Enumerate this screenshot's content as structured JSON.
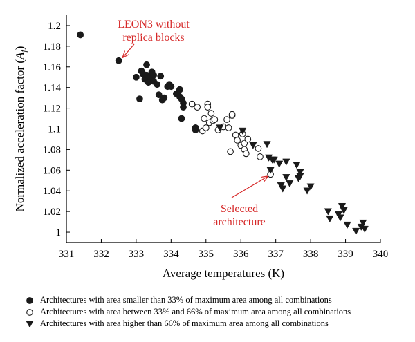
{
  "chart_data": {
    "type": "scatter",
    "title": "",
    "xlabel": "Average temperatures (K)",
    "ylabel_main": "Normalized acceleration factor (",
    "ylabel_symbol": "A",
    "ylabel_sub": "f",
    "ylabel_close": ")",
    "xlim": [
      331,
      340
    ],
    "ylim": [
      0.99,
      1.21
    ],
    "xticks": [
      "331",
      "332",
      "333",
      "334",
      "335",
      "336",
      "337",
      "338",
      "339",
      "340"
    ],
    "yticks": [
      "1",
      "1.02",
      "1.04",
      "1.06",
      "1.08",
      "1.1",
      "1.12",
      "1.14",
      "1.16",
      "1.18",
      "1.2"
    ],
    "grid": false,
    "legend_position": "bottom",
    "colors": {
      "axis": "#000000",
      "annotation": "#d62828",
      "marker": "#1a1a1a"
    },
    "series": [
      {
        "name": "Architectures with area smaller than 33% of maximum area among all combinations",
        "marker": "filled-circle",
        "points": [
          [
            331.4,
            1.191
          ],
          [
            332.5,
            1.166
          ],
          [
            333.0,
            1.15
          ],
          [
            333.1,
            1.129
          ],
          [
            333.15,
            1.156
          ],
          [
            333.2,
            1.153
          ],
          [
            333.25,
            1.148
          ],
          [
            333.3,
            1.152
          ],
          [
            333.3,
            1.162
          ],
          [
            333.35,
            1.145
          ],
          [
            333.4,
            1.15
          ],
          [
            333.45,
            1.155
          ],
          [
            333.5,
            1.146
          ],
          [
            333.5,
            1.152
          ],
          [
            333.6,
            1.143
          ],
          [
            333.65,
            1.133
          ],
          [
            333.7,
            1.151
          ],
          [
            333.75,
            1.128
          ],
          [
            333.8,
            1.13
          ],
          [
            333.9,
            1.141
          ],
          [
            333.95,
            1.143
          ],
          [
            334.0,
            1.141
          ],
          [
            334.15,
            1.134
          ],
          [
            334.2,
            1.135
          ],
          [
            334.25,
            1.131
          ],
          [
            334.25,
            1.138
          ],
          [
            334.3,
            1.129
          ],
          [
            334.35,
            1.125
          ],
          [
            334.35,
            1.121
          ],
          [
            334.3,
            1.11
          ],
          [
            334.7,
            1.101
          ],
          [
            334.7,
            1.099
          ]
        ]
      },
      {
        "name": "Architectures with area between 33% and 66% of maximum area among all combinations",
        "marker": "open-circle",
        "points": [
          [
            334.6,
            1.124
          ],
          [
            334.75,
            1.121
          ],
          [
            334.7,
            1.101
          ],
          [
            334.9,
            1.098
          ],
          [
            334.95,
            1.11
          ],
          [
            335.0,
            1.101
          ],
          [
            335.05,
            1.124
          ],
          [
            335.05,
            1.121
          ],
          [
            335.1,
            1.106
          ],
          [
            335.15,
            1.115
          ],
          [
            335.2,
            1.108
          ],
          [
            335.25,
            1.109
          ],
          [
            335.35,
            1.099
          ],
          [
            335.5,
            1.102
          ],
          [
            335.6,
            1.109
          ],
          [
            335.65,
            1.101
          ],
          [
            335.7,
            1.078
          ],
          [
            335.75,
            1.113
          ],
          [
            335.75,
            1.114
          ],
          [
            335.85,
            1.094
          ],
          [
            335.9,
            1.089
          ],
          [
            336.0,
            1.084
          ],
          [
            336.05,
            1.095
          ],
          [
            336.1,
            1.086
          ],
          [
            336.1,
            1.08
          ],
          [
            336.15,
            1.076
          ],
          [
            336.2,
            1.09
          ],
          [
            336.5,
            1.081
          ],
          [
            336.55,
            1.073
          ],
          [
            336.85,
            1.056
          ]
        ]
      },
      {
        "name": "Architectures with area higher than 66% of maximum area among all combinations",
        "marker": "filled-triangle-down",
        "points": [
          [
            335.4,
            1.101
          ],
          [
            336.05,
            1.098
          ],
          [
            336.35,
            1.084
          ],
          [
            336.75,
            1.085
          ],
          [
            336.8,
            1.072
          ],
          [
            336.85,
            1.06
          ],
          [
            336.9,
            1.07
          ],
          [
            336.95,
            1.07
          ],
          [
            337.1,
            1.066
          ],
          [
            337.15,
            1.045
          ],
          [
            337.2,
            1.042
          ],
          [
            337.3,
            1.068
          ],
          [
            337.3,
            1.053
          ],
          [
            337.4,
            1.047
          ],
          [
            337.6,
            1.065
          ],
          [
            337.65,
            1.052
          ],
          [
            337.7,
            1.058
          ],
          [
            337.7,
            1.054
          ],
          [
            337.9,
            1.04
          ],
          [
            338.0,
            1.044
          ],
          [
            338.5,
            1.02
          ],
          [
            338.55,
            1.013
          ],
          [
            338.8,
            1.017
          ],
          [
            338.85,
            1.014
          ],
          [
            338.9,
            1.025
          ],
          [
            338.95,
            1.021
          ],
          [
            339.05,
            1.007
          ],
          [
            339.3,
            1.001
          ],
          [
            339.45,
            1.005
          ],
          [
            339.5,
            1.009
          ],
          [
            339.55,
            1.003
          ]
        ]
      }
    ],
    "annotations": [
      {
        "text_lines": [
          "LEON3 without",
          "replica blocks"
        ],
        "target": [
          332.5,
          1.166
        ]
      },
      {
        "text_lines": [
          "Selected",
          "architecture"
        ],
        "target": [
          336.85,
          1.058
        ]
      }
    ]
  }
}
